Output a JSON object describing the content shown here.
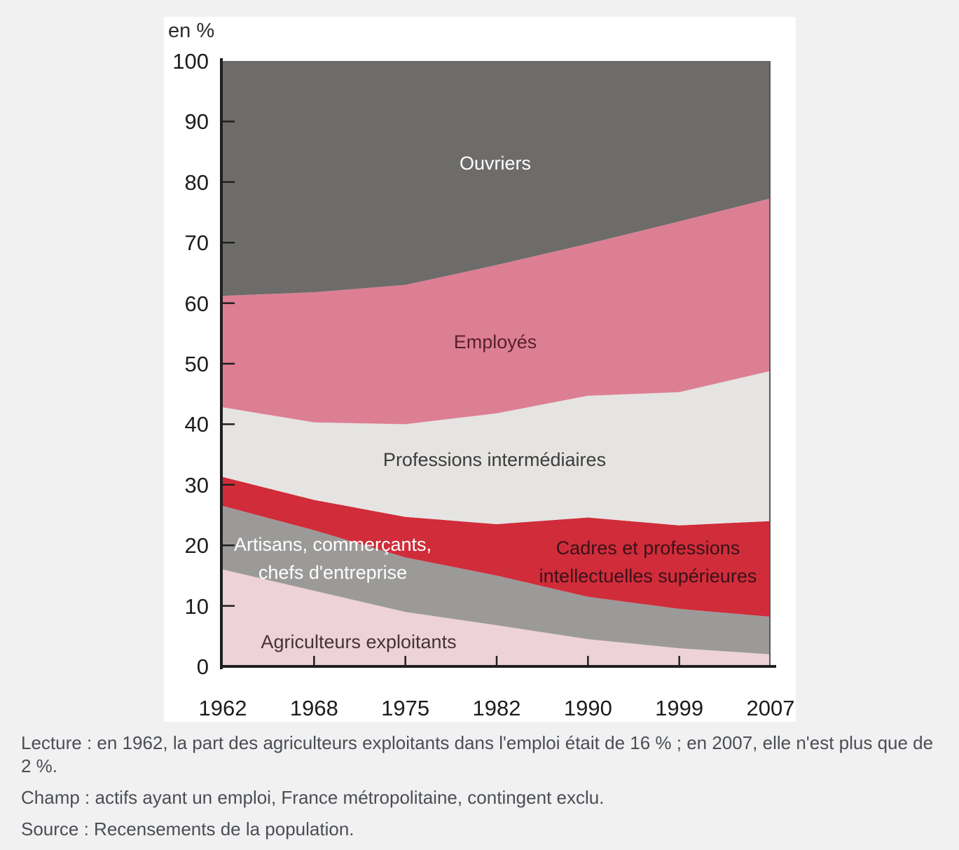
{
  "page": {
    "background": "#f1f1f2",
    "panel_background": "#ffffff"
  },
  "chart": {
    "unit_label": "en %",
    "x_labels": [
      "1962",
      "1968",
      "1975",
      "1982",
      "1990",
      "1999",
      "2007"
    ],
    "y_tick_labels": [
      "0",
      "10",
      "20",
      "30",
      "40",
      "50",
      "60",
      "70",
      "80",
      "90",
      "100"
    ],
    "axis_color": "#1f1f1f"
  },
  "chart_data": {
    "type": "area",
    "stacked": true,
    "title": "",
    "xlabel": "",
    "ylabel": "en %",
    "ylim": [
      0,
      100
    ],
    "grid": false,
    "legend_position": "labels-inside-areas",
    "x": [
      1962,
      1968,
      1975,
      1982,
      1990,
      1999,
      2007
    ],
    "series": [
      {
        "name": "Agriculteurs exploitants",
        "color": "#edd2d8",
        "values": [
          16,
          12.5,
          9,
          6.8,
          4.5,
          3,
          2
        ]
      },
      {
        "name": "Artisans, commerçants, chefs d'entreprise",
        "color": "#9b9a99",
        "values": [
          10.5,
          10,
          9,
          8.2,
          7,
          6.5,
          6.2
        ]
      },
      {
        "name": "Cadres et professions intellectuelles supérieures",
        "color": "#d02c3a",
        "values": [
          4.8,
          5,
          6.7,
          8.5,
          13.1,
          13.8,
          15.8
        ]
      },
      {
        "name": "Professions intermédiaires",
        "color": "#e5e4e2",
        "values": [
          11.5,
          12.8,
          15.3,
          18.3,
          20.1,
          22,
          24.8
        ]
      },
      {
        "name": "Employés",
        "color": "#dd7f93",
        "values": [
          18.4,
          21.5,
          23,
          24.5,
          25.1,
          28.2,
          28.5
        ]
      },
      {
        "name": "Ouvriers",
        "color": "#6d6c6b",
        "values": [
          38.8,
          38.2,
          37,
          33.7,
          30.2,
          26.5,
          22.7
        ]
      }
    ]
  },
  "area_labels": {
    "ouvriers": "Ouvriers",
    "employes": "Employés",
    "prof_int": "Professions intermédiaires",
    "artisans_line1": "Artisans, commerçants,",
    "artisans_line2": "chefs d'entreprise",
    "cadres_line1": "Cadres et professions",
    "cadres_line2": "intellectuelles supérieures",
    "agriculteurs": "Agriculteurs exploitants"
  },
  "notes": {
    "lecture": "Lecture : en 1962, la part des agriculteurs exploitants dans l'emploi était de 16 % ; en 2007, elle n'est plus que de 2 %.",
    "champ": "Champ : actifs ayant un emploi, France métropolitaine, contingent exclu.",
    "source": "Source : Recensements de la population."
  }
}
